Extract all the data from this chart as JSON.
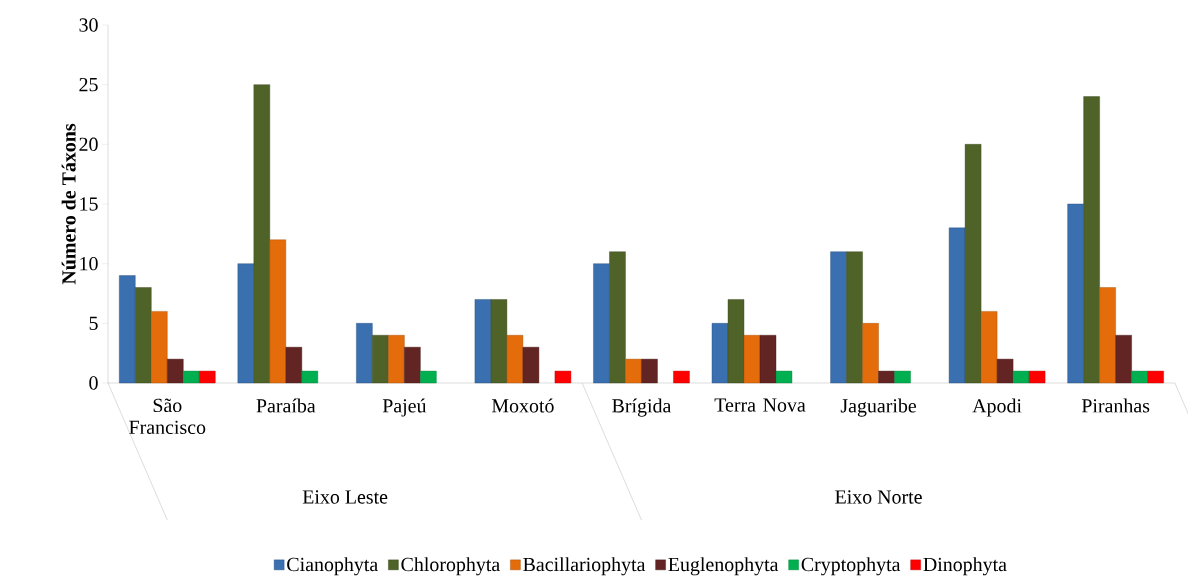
{
  "chart_data": {
    "type": "bar",
    "ylabel": "Número de Táxons",
    "categories": [
      "São Francisco",
      "Paraíba",
      "Pajeú",
      "Moxotó",
      "Brígida",
      "Terra Nova",
      "Jaguaribe",
      "Apodi",
      "Piranhas"
    ],
    "series": [
      {
        "name": "Cianophyta",
        "color": "#3a6fb0",
        "values": [
          9,
          10,
          5,
          7,
          10,
          5,
          11,
          13,
          15
        ]
      },
      {
        "name": "Chlorophyta",
        "color": "#4f6228",
        "values": [
          8,
          25,
          4,
          7,
          11,
          7,
          11,
          20,
          24
        ]
      },
      {
        "name": "Bacillariophyta",
        "color": "#e46c0a",
        "values": [
          6,
          12,
          4,
          4,
          2,
          4,
          5,
          6,
          8
        ]
      },
      {
        "name": "Euglenophyta",
        "color": "#632523",
        "values": [
          2,
          3,
          3,
          3,
          2,
          4,
          1,
          2,
          4
        ]
      },
      {
        "name": "Cryptophyta",
        "color": "#00b050",
        "values": [
          1,
          1,
          1,
          null,
          null,
          1,
          1,
          1,
          1
        ]
      },
      {
        "name": "Dinophyta",
        "color": "#ff0000",
        "values": [
          1,
          null,
          null,
          1,
          1,
          null,
          null,
          1,
          1
        ]
      }
    ],
    "ylim": [
      0,
      30
    ],
    "yticks": [
      0,
      5,
      10,
      15,
      20,
      25,
      30
    ],
    "grid": false,
    "legend": "bottom",
    "annotations": [
      "Eixo Leste",
      "Eixo Norte"
    ]
  }
}
